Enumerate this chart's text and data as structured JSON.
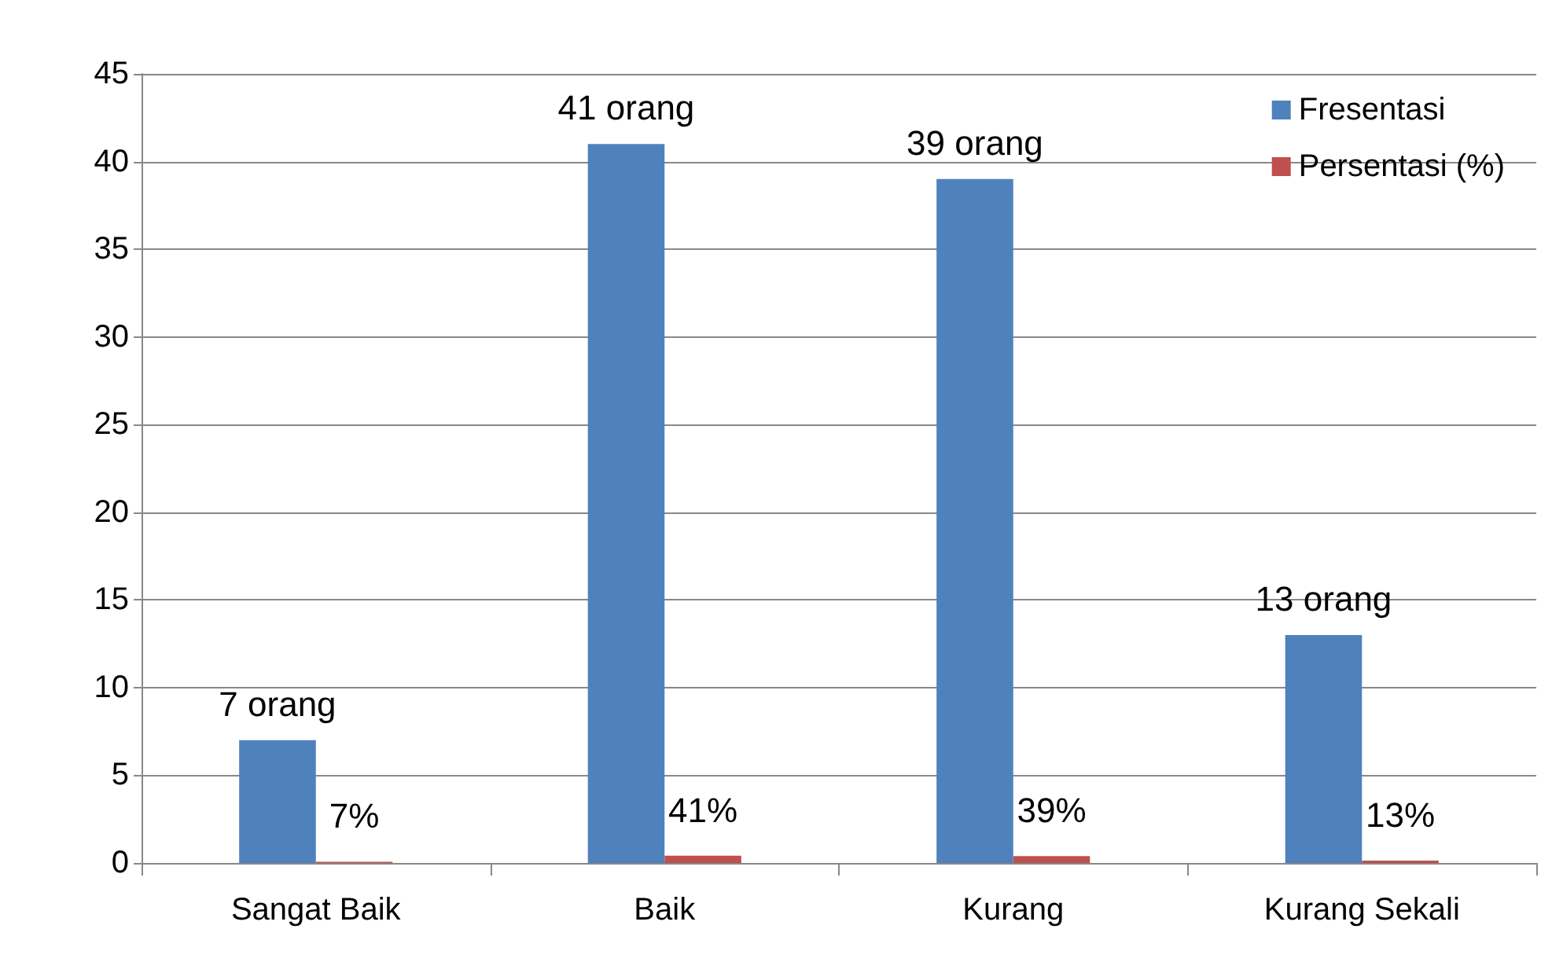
{
  "chart_data": {
    "type": "bar",
    "categories": [
      "Sangat Baik",
      "Baik",
      "Kurang",
      "Kurang Sekali"
    ],
    "series": [
      {
        "name": "Fresentasi",
        "color": "#4f81bd",
        "values": [
          7,
          41,
          39,
          13
        ],
        "value_labels": [
          "7 orang",
          "41 orang",
          "39 orang",
          "13 orang"
        ]
      },
      {
        "name": "Persentasi (%)",
        "color": "#c0504d",
        "values": [
          0.07,
          0.41,
          0.39,
          0.13
        ],
        "value_labels": [
          "7%",
          "41%",
          "39%",
          "13%"
        ]
      }
    ],
    "ylim": [
      0,
      45
    ],
    "yticks": [
      0,
      5,
      10,
      15,
      20,
      25,
      30,
      35,
      40,
      45
    ],
    "grid": "y",
    "legend": "top right"
  }
}
